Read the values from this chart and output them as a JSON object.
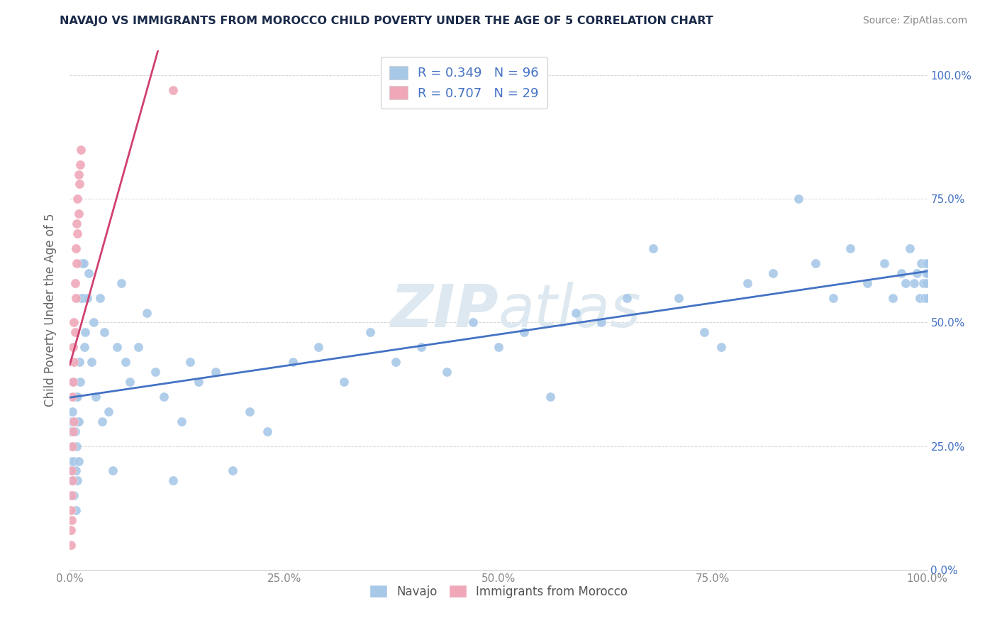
{
  "title": "NAVAJO VS IMMIGRANTS FROM MOROCCO CHILD POVERTY UNDER THE AGE OF 5 CORRELATION CHART",
  "source": "Source: ZipAtlas.com",
  "ylabel": "Child Poverty Under the Age of 5",
  "navajo_R": 0.349,
  "navajo_N": 96,
  "morocco_R": 0.707,
  "morocco_N": 29,
  "navajo_color": "#a8c8e8",
  "morocco_color": "#f0a8b8",
  "navajo_line_color": "#4472c4",
  "morocco_line_color": "#d04070",
  "legend_text_color": "#4472c4",
  "title_color": "#1a2a4a",
  "watermark_color": "#dde8f0",
  "background_color": "#ffffff",
  "navajo_x": [
    0.001,
    0.002,
    0.002,
    0.003,
    0.003,
    0.003,
    0.004,
    0.004,
    0.005,
    0.005,
    0.006,
    0.006,
    0.007,
    0.007,
    0.008,
    0.008,
    0.009,
    0.009,
    0.01,
    0.01,
    0.011,
    0.012,
    0.013,
    0.014,
    0.015,
    0.016,
    0.017,
    0.018,
    0.02,
    0.022,
    0.025,
    0.028,
    0.03,
    0.035,
    0.038,
    0.04,
    0.045,
    0.05,
    0.055,
    0.06,
    0.065,
    0.07,
    0.08,
    0.09,
    0.1,
    0.11,
    0.12,
    0.13,
    0.14,
    0.15,
    0.17,
    0.19,
    0.21,
    0.23,
    0.26,
    0.29,
    0.32,
    0.35,
    0.38,
    0.41,
    0.44,
    0.47,
    0.5,
    0.53,
    0.56,
    0.59,
    0.62,
    0.65,
    0.68,
    0.71,
    0.74,
    0.76,
    0.79,
    0.82,
    0.85,
    0.87,
    0.89,
    0.91,
    0.93,
    0.95,
    0.96,
    0.97,
    0.975,
    0.98,
    0.985,
    0.988,
    0.991,
    0.993,
    0.995,
    0.997,
    0.998,
    0.999,
    0.999,
    1.0,
    1.0,
    1.0
  ],
  "navajo_y": [
    0.28,
    0.22,
    0.3,
    0.18,
    0.25,
    0.32,
    0.2,
    0.38,
    0.15,
    0.22,
    0.35,
    0.28,
    0.12,
    0.2,
    0.3,
    0.25,
    0.18,
    0.35,
    0.22,
    0.3,
    0.42,
    0.38,
    0.55,
    0.62,
    0.55,
    0.62,
    0.45,
    0.48,
    0.55,
    0.6,
    0.42,
    0.5,
    0.35,
    0.55,
    0.3,
    0.48,
    0.32,
    0.2,
    0.45,
    0.58,
    0.42,
    0.38,
    0.45,
    0.52,
    0.4,
    0.35,
    0.18,
    0.3,
    0.42,
    0.38,
    0.4,
    0.2,
    0.32,
    0.28,
    0.42,
    0.45,
    0.38,
    0.48,
    0.42,
    0.45,
    0.4,
    0.5,
    0.45,
    0.48,
    0.35,
    0.52,
    0.5,
    0.55,
    0.65,
    0.55,
    0.48,
    0.45,
    0.58,
    0.6,
    0.75,
    0.62,
    0.55,
    0.65,
    0.58,
    0.62,
    0.55,
    0.6,
    0.58,
    0.65,
    0.58,
    0.6,
    0.55,
    0.62,
    0.58,
    0.55,
    0.62,
    0.58,
    0.6,
    0.55,
    0.62,
    0.6
  ],
  "morocco_x": [
    0.001,
    0.001,
    0.001,
    0.002,
    0.002,
    0.002,
    0.003,
    0.003,
    0.003,
    0.004,
    0.004,
    0.004,
    0.005,
    0.005,
    0.005,
    0.006,
    0.006,
    0.007,
    0.007,
    0.008,
    0.008,
    0.009,
    0.009,
    0.01,
    0.01,
    0.011,
    0.012,
    0.013,
    0.12
  ],
  "morocco_y": [
    0.05,
    0.08,
    0.12,
    0.1,
    0.15,
    0.2,
    0.18,
    0.25,
    0.35,
    0.28,
    0.38,
    0.45,
    0.3,
    0.42,
    0.5,
    0.48,
    0.58,
    0.55,
    0.65,
    0.62,
    0.7,
    0.68,
    0.75,
    0.72,
    0.8,
    0.78,
    0.82,
    0.85,
    0.97
  ],
  "xlim": [
    0.0,
    1.0
  ],
  "ylim": [
    0.0,
    1.05
  ],
  "xticks": [
    0.0,
    0.25,
    0.5,
    0.75,
    1.0
  ],
  "xtick_labels": [
    "0.0%",
    "25.0%",
    "50.0%",
    "75.0%",
    "100.0%"
  ],
  "ytick_labels_right": [
    "0.0%",
    "25.0%",
    "50.0%",
    "75.0%",
    "100.0%"
  ],
  "yticks": [
    0.0,
    0.25,
    0.5,
    0.75,
    1.0
  ],
  "grid_color": "#cccccc",
  "tick_color": "#888888"
}
